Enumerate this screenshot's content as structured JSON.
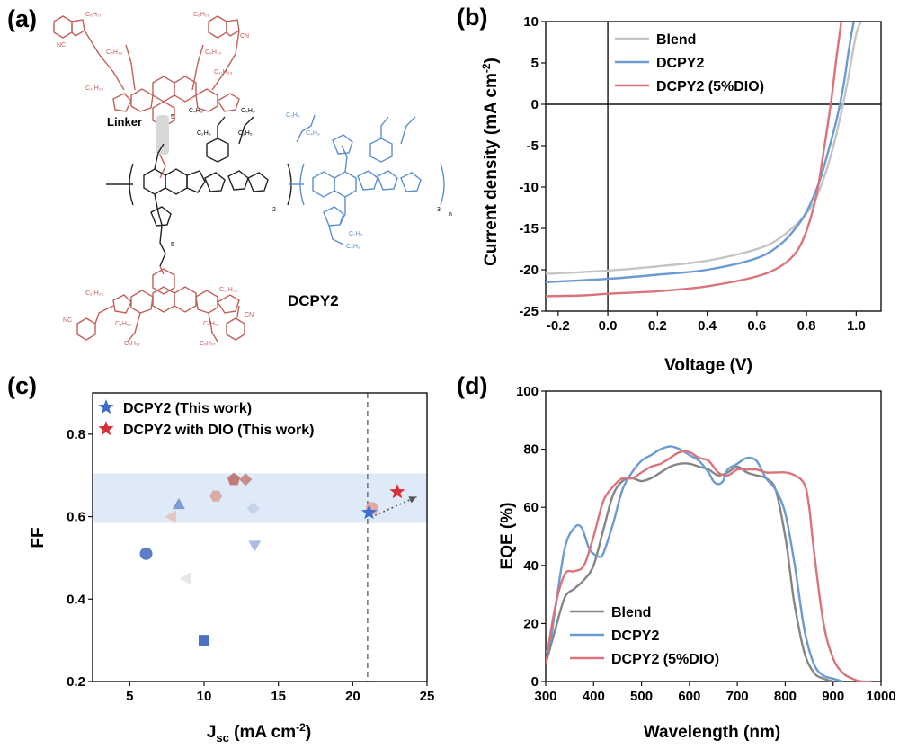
{
  "panels": {
    "a": {
      "label": "(a)",
      "molecule_name": "DCPY2",
      "linker_label": "Linker",
      "annotations": [
        "5",
        "5",
        "2",
        "3",
        "n",
        "O",
        "O",
        "N",
        "N",
        "S",
        "C₆H₁₇",
        "C₆H₁₃",
        "C₁₁H₂₃",
        "C₂H₅",
        "C₄H₉",
        "NC",
        "CN"
      ]
    }
  },
  "colors": {
    "blend": "#c4c4c4",
    "blend_eqe": "#858585",
    "dcpy2": "#6a9bd1",
    "dio": "#d9747c",
    "accent_pink": "#c0605a",
    "accent_blue": "#5b8fcf",
    "band": "#deeaf7"
  },
  "chart_data": [
    {
      "panel": "(b)",
      "type": "line",
      "xlabel": "Voltage (V)",
      "ylabel": "Current density (mA cm",
      "ylabel_sup": "-2",
      "ylabel_close": ")",
      "xlim": [
        -0.25,
        1.1
      ],
      "ylim": [
        -25,
        10
      ],
      "xticks": [
        -0.2,
        0.0,
        0.2,
        0.4,
        0.6,
        0.8,
        1.0
      ],
      "xtick_labels": [
        "-0.2",
        "0.0",
        "0.2",
        "0.4",
        "0.6",
        "0.8",
        "1.0"
      ],
      "yticks": [
        -25,
        -20,
        -15,
        -10,
        -5,
        0,
        5,
        10
      ],
      "ytick_labels": [
        "-25",
        "-20",
        "-15",
        "-10",
        "-5",
        "0",
        "5",
        "10"
      ],
      "zero_lines": true,
      "legend_position": "top-left",
      "series": [
        {
          "name": "Blend",
          "color": "#c4c4c4",
          "x": [
            -0.25,
            0.0,
            0.2,
            0.4,
            0.6,
            0.7,
            0.8,
            0.85,
            0.9,
            0.94,
            0.97,
            1.0,
            1.02
          ],
          "y": [
            -20.5,
            -20.1,
            -19.6,
            -18.9,
            -17.5,
            -16.0,
            -13.2,
            -10.5,
            -6.0,
            -1.0,
            3.5,
            8.5,
            10.0
          ]
        },
        {
          "name": "DCPY2",
          "color": "#6a9bd1",
          "x": [
            -0.25,
            0.0,
            0.2,
            0.4,
            0.6,
            0.7,
            0.76,
            0.8,
            0.85,
            0.88,
            0.92,
            0.95,
            0.97,
            0.99
          ],
          "y": [
            -21.5,
            -21.1,
            -20.6,
            -20.0,
            -18.6,
            -16.8,
            -14.8,
            -13.0,
            -9.5,
            -6.5,
            -2.0,
            2.5,
            6.5,
            10.0
          ]
        },
        {
          "name": "DCPY2 (5%DIO)",
          "color": "#d9747c",
          "x": [
            -0.25,
            -0.1,
            0.0,
            0.2,
            0.4,
            0.6,
            0.7,
            0.76,
            0.8,
            0.84,
            0.87,
            0.9,
            0.92,
            0.94
          ],
          "y": [
            -23.2,
            -23.1,
            -22.9,
            -22.6,
            -22.0,
            -20.8,
            -19.5,
            -17.8,
            -15.3,
            -11.0,
            -5.5,
            0.5,
            5.5,
            10.0
          ]
        }
      ]
    },
    {
      "panel": "(c)",
      "type": "scatter",
      "xlabel_main": "J",
      "xlabel_sub": "sc",
      "xlabel_unit": " (mA cm",
      "xlabel_sup": "-2",
      "xlabel_close": ")",
      "ylabel": "FF",
      "xlim": [
        2.5,
        25
      ],
      "ylim": [
        0.2,
        0.9
      ],
      "xticks": [
        5,
        10,
        15,
        20,
        25
      ],
      "xtick_labels": [
        "5",
        "10",
        "15",
        "20",
        "25"
      ],
      "yticks": [
        0.2,
        0.4,
        0.6,
        0.8
      ],
      "ytick_labels": [
        "0.2",
        "0.4",
        "0.6",
        "0.8"
      ],
      "band": [
        0.585,
        0.705
      ],
      "vline_x": 21.0,
      "arrow": {
        "from": [
          21.5,
          0.603
        ],
        "to": [
          24.3,
          0.648
        ]
      },
      "legend_position": "top-left",
      "legend": [
        {
          "name": "DCPY2 (This work)",
          "color": "#3b6ed0",
          "marker": "star"
        },
        {
          "name": "DCPY2 with DIO (This work)",
          "color": "#d8303a",
          "marker": "star"
        }
      ],
      "points": [
        {
          "x": 6.1,
          "y": 0.51,
          "marker": "circle",
          "color": "#5b7ec6",
          "opacity": 1
        },
        {
          "x": 10.0,
          "y": 0.3,
          "marker": "square",
          "color": "#4a72c0",
          "opacity": 1
        },
        {
          "x": 8.3,
          "y": 0.63,
          "marker": "triangle-up",
          "color": "#7a9bd3",
          "opacity": 1
        },
        {
          "x": 7.8,
          "y": 0.6,
          "marker": "triangle-left",
          "color": "#e3c5c2",
          "opacity": 1
        },
        {
          "x": 8.8,
          "y": 0.45,
          "marker": "triangle-left",
          "color": "#e6e6ea",
          "opacity": 1
        },
        {
          "x": 10.8,
          "y": 0.65,
          "marker": "hexagon",
          "color": "#dbaba6",
          "opacity": 1
        },
        {
          "x": 12.0,
          "y": 0.69,
          "marker": "pentagon",
          "color": "#c27c77",
          "opacity": 1
        },
        {
          "x": 12.8,
          "y": 0.69,
          "marker": "diamond",
          "color": "#c98e8a",
          "opacity": 1
        },
        {
          "x": 13.3,
          "y": 0.62,
          "marker": "diamond",
          "color": "#c7d3ea",
          "opacity": 1
        },
        {
          "x": 13.4,
          "y": 0.53,
          "marker": "triangle-down",
          "color": "#a9bde3",
          "opacity": 1
        },
        {
          "x": 21.3,
          "y": 0.62,
          "marker": "circle",
          "color": "#e2a6a2",
          "opacity": 1
        },
        {
          "x": 21.1,
          "y": 0.61,
          "marker": "star",
          "color": "#3b6ed0",
          "opacity": 1
        },
        {
          "x": 23.0,
          "y": 0.66,
          "marker": "star",
          "color": "#d8303a",
          "opacity": 1
        }
      ]
    },
    {
      "panel": "(d)",
      "type": "line",
      "xlabel": "Wavelength (nm)",
      "ylabel": "EQE (%)",
      "xlim": [
        300,
        1000
      ],
      "ylim": [
        0,
        100
      ],
      "xticks": [
        300,
        400,
        500,
        600,
        700,
        800,
        900,
        1000
      ],
      "xtick_labels": [
        "300",
        "400",
        "500",
        "600",
        "700",
        "800",
        "900",
        "1000"
      ],
      "yticks": [
        0,
        20,
        40,
        60,
        80,
        100
      ],
      "ytick_labels": [
        "0",
        "20",
        "40",
        "60",
        "80",
        "100"
      ],
      "legend_position": "bottom-left",
      "series": [
        {
          "name": "Blend",
          "color": "#858585",
          "x": [
            300,
            320,
            340,
            360,
            380,
            400,
            420,
            440,
            460,
            480,
            500,
            520,
            540,
            560,
            580,
            600,
            620,
            640,
            660,
            680,
            700,
            720,
            740,
            760,
            780,
            800,
            810,
            820,
            840,
            860,
            880,
            900
          ],
          "y": [
            6,
            18,
            29,
            32,
            35,
            40,
            52,
            64,
            69,
            70,
            69,
            70,
            72,
            74,
            75,
            75,
            74,
            73,
            71,
            72,
            74,
            72,
            71,
            70,
            66,
            50,
            38,
            26,
            10,
            3,
            1,
            0
          ]
        },
        {
          "name": "DCPY2",
          "color": "#6a9bd1",
          "x": [
            300,
            310,
            320,
            340,
            360,
            375,
            390,
            400,
            410,
            420,
            440,
            460,
            480,
            500,
            520,
            540,
            560,
            580,
            600,
            620,
            640,
            650,
            660,
            670,
            680,
            700,
            720,
            740,
            760,
            780,
            800,
            820,
            840,
            860,
            880,
            900,
            920
          ],
          "y": [
            10,
            14,
            25,
            46,
            53,
            53,
            46,
            44,
            43,
            44,
            54,
            66,
            72,
            76,
            78,
            80,
            81,
            80,
            78,
            76,
            72,
            69,
            68,
            69,
            73,
            75,
            77,
            76,
            70,
            66,
            58,
            40,
            18,
            6,
            2,
            1,
            0
          ]
        },
        {
          "name": "DCPY2 (5%DIO)",
          "color": "#d9747c",
          "x": [
            300,
            320,
            340,
            360,
            380,
            400,
            420,
            440,
            460,
            480,
            500,
            520,
            540,
            560,
            580,
            600,
            620,
            640,
            660,
            680,
            700,
            720,
            740,
            760,
            780,
            800,
            820,
            840,
            850,
            860,
            880,
            900,
            920,
            940,
            960,
            980
          ],
          "y": [
            6,
            26,
            37,
            38,
            40,
            50,
            62,
            67,
            70,
            70,
            72,
            74,
            75,
            77,
            79,
            79,
            77,
            76,
            72,
            71,
            73,
            73,
            73,
            72,
            72,
            72,
            71,
            68,
            60,
            45,
            20,
            8,
            3,
            1,
            0,
            0
          ]
        }
      ]
    }
  ]
}
